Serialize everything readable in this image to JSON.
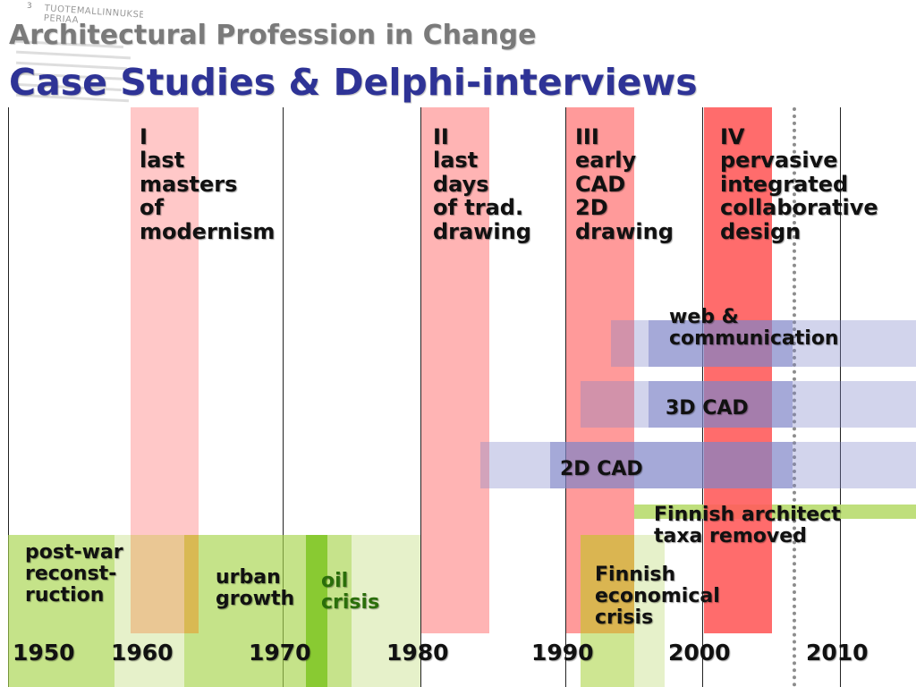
{
  "slide": {
    "title": "Architectural Profession in Change",
    "subtitle": "Case Studies & Delphi-interviews"
  },
  "background_doc": {
    "page_number": "3",
    "heading": "TUOTEMALLINNUKSEN PERIAA"
  },
  "phases": [
    {
      "id": "I",
      "label": "I\nlast\nmasters\nof\nmodernism"
    },
    {
      "id": "II",
      "label": "II\nlast\ndays\nof trad.\ndrawing"
    },
    {
      "id": "III",
      "label": "III\nearly\nCAD\n2D\ndrawing"
    },
    {
      "id": "IV",
      "label": "IV\npervasive\nintegrated\ncollaborative\ndesign"
    }
  ],
  "technologies": [
    {
      "label": "web &\ncommunication"
    },
    {
      "label": "3D CAD"
    },
    {
      "label": "2D CAD"
    }
  ],
  "events": [
    {
      "label": "Finnish architect\ntaxa removed"
    },
    {
      "label": "post-war\nreconst-\nruction"
    },
    {
      "label": "urban\ngrowth"
    },
    {
      "label": "oil\ncrisis"
    },
    {
      "label": "Finnish\neconomical\ncrisis"
    }
  ],
  "timeline": {
    "years": [
      "1950",
      "1960",
      "1970",
      "1980",
      "1990",
      "2000",
      "2010"
    ]
  },
  "colors": {
    "title_grey": "#7a7a7a",
    "subtitle_blue": "#2e3396",
    "phase_light_red": "#ff8f8f",
    "phase_red": "#ff5c5c",
    "tech_blue": "#7f84c8",
    "event_green": "#a6d44a",
    "crisis_yellow": "#d6b84a"
  }
}
